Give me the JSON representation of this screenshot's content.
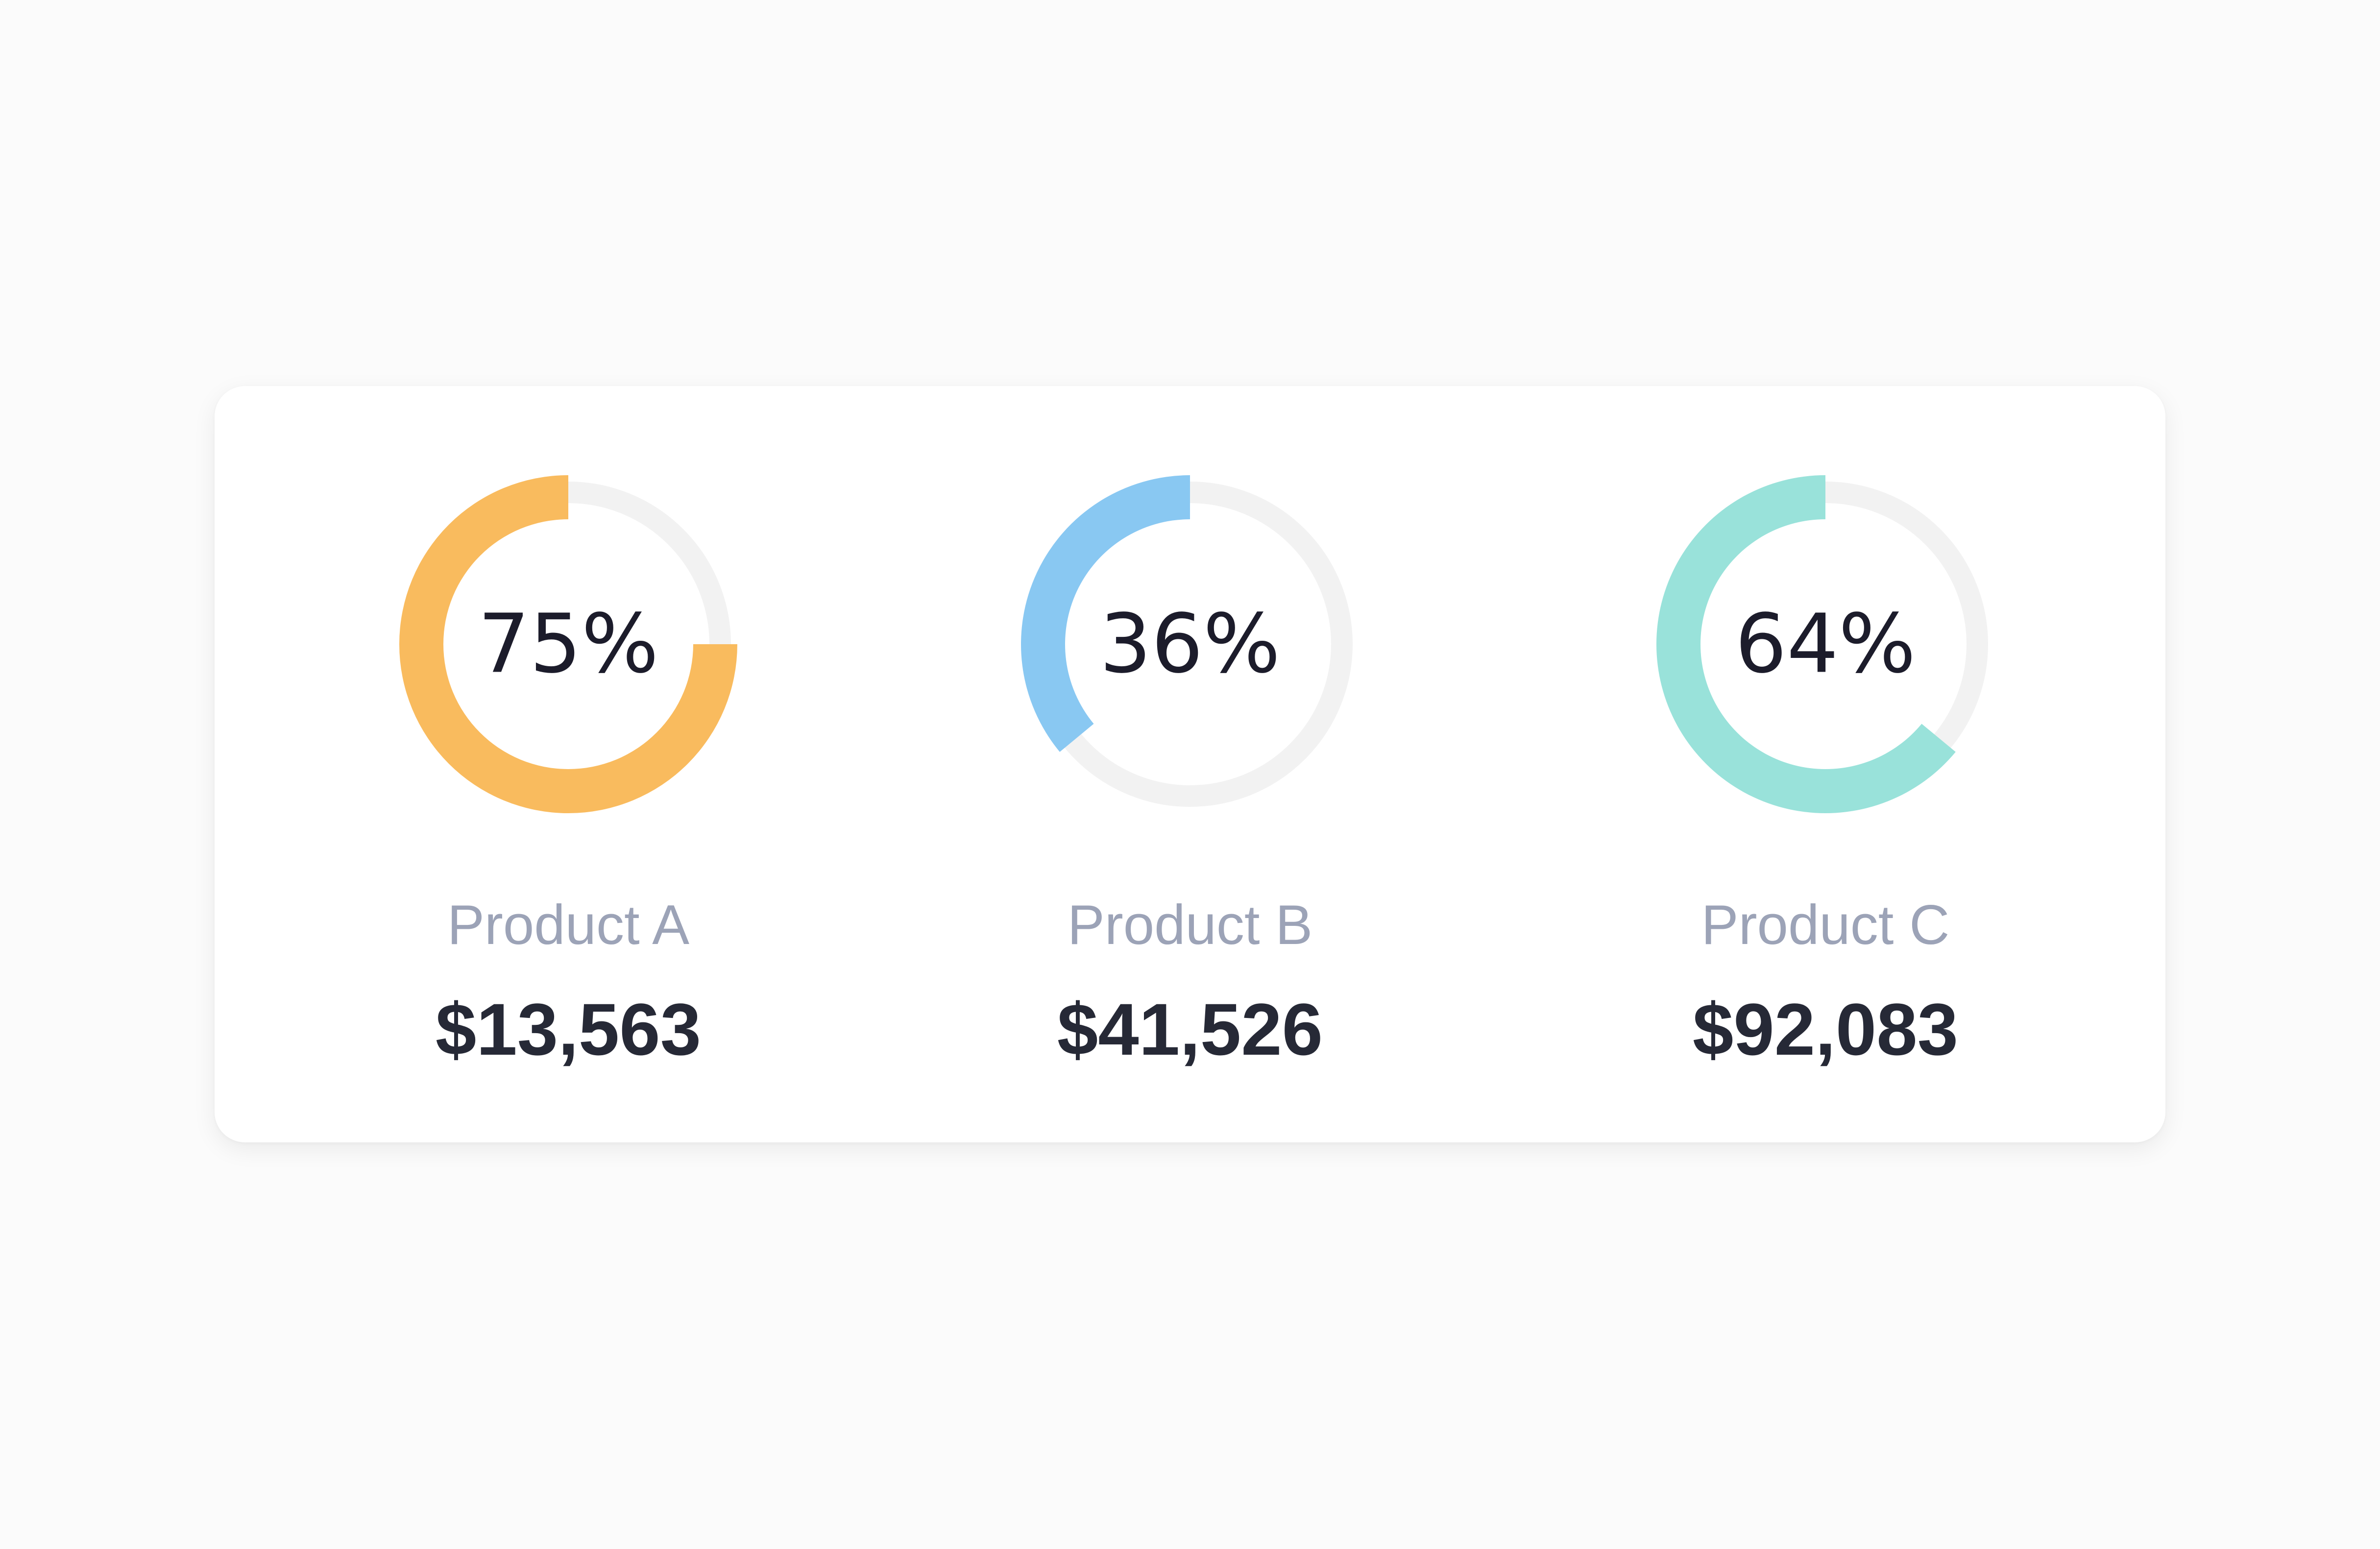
{
  "chart_data": {
    "type": "donut",
    "track_color": "#f2f2f2",
    "items": [
      {
        "label": "Product A",
        "percent": 75,
        "percent_label": "75%",
        "amount": "$13,563",
        "color": "#f9bb5e"
      },
      {
        "label": "Product B",
        "percent": 36,
        "percent_label": "36%",
        "amount": "$41,526",
        "color": "#89c8f2"
      },
      {
        "label": "Product C",
        "percent": 64,
        "percent_label": "64%",
        "amount": "$92,083",
        "color": "#99e2da"
      }
    ]
  }
}
